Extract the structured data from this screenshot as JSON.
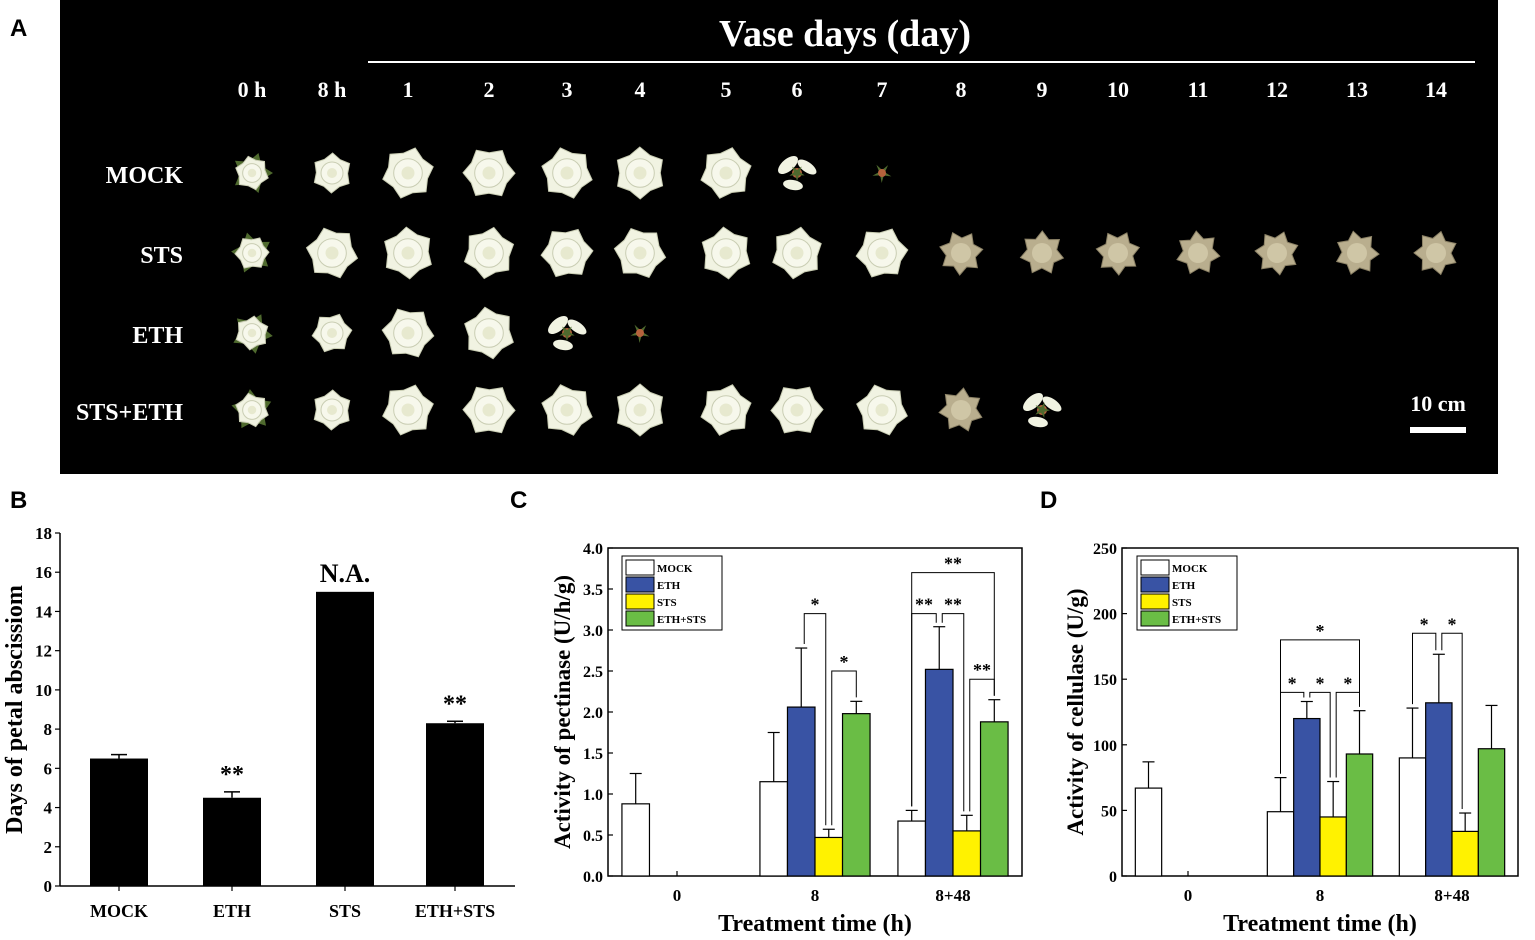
{
  "panels": {
    "A": {
      "letter": "A",
      "title": "Vase days (day)",
      "time_labels": [
        "0 h",
        "8 h",
        "1",
        "2",
        "3",
        "4",
        "5",
        "6",
        "7",
        "8",
        "9",
        "10",
        "11",
        "12",
        "13",
        "14"
      ],
      "rows": [
        {
          "label": "MOCK",
          "stages": [
            "open",
            "open",
            "open",
            "open",
            "open",
            "open",
            "open",
            "falling",
            "bare"
          ]
        },
        {
          "label": "STS",
          "stages": [
            "open",
            "open",
            "open",
            "open",
            "open",
            "open",
            "open",
            "open",
            "open",
            "wilted",
            "wilted",
            "wilted",
            "wilted",
            "wilted",
            "wilted",
            "wilted"
          ]
        },
        {
          "label": "ETH",
          "stages": [
            "open",
            "open",
            "open",
            "open",
            "falling",
            "bare"
          ]
        },
        {
          "label": "STS+ETH",
          "stages": [
            "open",
            "open",
            "open",
            "open",
            "open",
            "open",
            "open",
            "open",
            "open",
            "wilted",
            "falling"
          ]
        }
      ],
      "scale_bar_label": "10 cm",
      "colors": {
        "background": "#000000",
        "petal": "#f1f3e2",
        "petal_edge": "#c9cdb3",
        "wilted": "#b9ae8e",
        "leaf": "#4f6a2e"
      }
    },
    "B": {
      "letter": "B"
    },
    "C": {
      "letter": "C"
    },
    "D": {
      "letter": "D"
    }
  },
  "chart_data": [
    {
      "id": "B",
      "type": "bar",
      "title": "",
      "xlabel": "",
      "ylabel": "Days of petal abscissiom",
      "categories": [
        "MOCK",
        "ETH",
        "STS",
        "ETH+STS"
      ],
      "values": [
        6.5,
        4.5,
        15.0,
        8.3
      ],
      "errors": [
        0.2,
        0.3,
        0,
        0.1
      ],
      "annotations": [
        "",
        "**",
        "N.A.",
        "**"
      ],
      "ylim": [
        0,
        18
      ],
      "yticks": [
        0,
        2,
        4,
        6,
        8,
        10,
        12,
        14,
        16,
        18
      ],
      "bar_color": "#000000"
    },
    {
      "id": "C",
      "type": "bar",
      "title": "",
      "xlabel": "Treatment time (h)",
      "ylabel": "Activity of pectinase (U/h/g)",
      "categories": [
        "0",
        "8",
        "8+48"
      ],
      "ylim": [
        0,
        4.0
      ],
      "yticks": [
        "0.0",
        "0.5",
        "1.0",
        "1.5",
        "2.0",
        "2.5",
        "3.0",
        "3.5",
        "4.0"
      ],
      "legend_position": "top-left",
      "series": [
        {
          "name": "MOCK",
          "color": "#ffffff",
          "values": [
            0.88,
            1.15,
            0.67
          ],
          "errors": [
            0.37,
            0.6,
            0.13
          ]
        },
        {
          "name": "ETH",
          "color": "#3953a4",
          "values": [
            null,
            2.06,
            2.52
          ],
          "errors": [
            null,
            0.72,
            0.52
          ]
        },
        {
          "name": "STS",
          "color": "#fff200",
          "values": [
            null,
            0.47,
            0.55
          ],
          "errors": [
            null,
            0.1,
            0.19
          ]
        },
        {
          "name": "ETH+STS",
          "color": "#6abd45",
          "values": [
            null,
            1.98,
            1.88
          ],
          "errors": [
            null,
            0.15,
            0.27
          ]
        }
      ],
      "significance": [
        {
          "group": 1,
          "from": 1,
          "to": 2,
          "y": 3.2,
          "label": "*"
        },
        {
          "group": 1,
          "from": 2,
          "to": 3,
          "y": 2.5,
          "label": "*"
        },
        {
          "group": 2,
          "from": 0,
          "to": 3,
          "y": 3.7,
          "label": "**"
        },
        {
          "group": 2,
          "from": 0,
          "to": 1,
          "y": 3.2,
          "label": "**"
        },
        {
          "group": 2,
          "from": 1,
          "to": 2,
          "y": 3.2,
          "label": "**"
        },
        {
          "group": 2,
          "from": 2,
          "to": 3,
          "y": 2.4,
          "label": "**"
        }
      ]
    },
    {
      "id": "D",
      "type": "bar",
      "title": "",
      "xlabel": "Treatment time (h)",
      "ylabel": "Activity of cellulase (U/g)",
      "categories": [
        "0",
        "8",
        "8+48"
      ],
      "ylim": [
        0,
        250
      ],
      "yticks": [
        "0",
        "50",
        "100",
        "150",
        "200",
        "250"
      ],
      "legend_position": "top-left",
      "series": [
        {
          "name": "MOCK",
          "color": "#ffffff",
          "values": [
            67,
            49,
            90
          ],
          "errors": [
            20,
            26,
            38
          ]
        },
        {
          "name": "ETH",
          "color": "#3953a4",
          "values": [
            null,
            120,
            132
          ],
          "errors": [
            null,
            13,
            37
          ]
        },
        {
          "name": "STS",
          "color": "#fff200",
          "values": [
            null,
            45,
            34
          ],
          "errors": [
            null,
            27,
            14
          ]
        },
        {
          "name": "ETH+STS",
          "color": "#6abd45",
          "values": [
            null,
            93,
            97
          ],
          "errors": [
            null,
            33,
            33
          ]
        }
      ],
      "significance": [
        {
          "group": 1,
          "from": 0,
          "to": 3,
          "y": 180,
          "label": "*"
        },
        {
          "group": 1,
          "from": 0,
          "to": 1,
          "y": 140,
          "label": "*"
        },
        {
          "group": 1,
          "from": 1,
          "to": 2,
          "y": 140,
          "label": "*"
        },
        {
          "group": 1,
          "from": 2,
          "to": 3,
          "y": 140,
          "label": "*"
        },
        {
          "group": 2,
          "from": 0,
          "to": 1,
          "y": 185,
          "label": "*"
        },
        {
          "group": 2,
          "from": 1,
          "to": 2,
          "y": 185,
          "label": "*"
        }
      ]
    }
  ]
}
